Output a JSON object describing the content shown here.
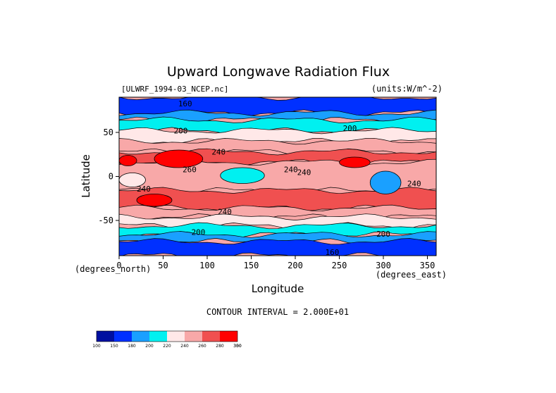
{
  "chart_data": {
    "type": "heatmap",
    "title": "Upward Longwave Radiation Flux",
    "file_label": "[ULWRF_1994-03_NCEP.nc]",
    "units_label": "(units:W/m^-2)",
    "xlabel": "Longitude",
    "ylabel": "Latitude",
    "x_unit_label": "(degrees_east)",
    "y_unit_label": "(degrees_north)",
    "xlim": [
      0,
      360
    ],
    "ylim": [
      -90,
      90
    ],
    "x_ticks": [
      0,
      50,
      100,
      150,
      200,
      250,
      300,
      350
    ],
    "y_ticks": [
      50,
      0,
      -50
    ],
    "contour_interval_text": "CONTOUR INTERVAL = 2.000E+01",
    "colorbar": {
      "levels": [
        100,
        150,
        180,
        200,
        220,
        240,
        260,
        280,
        300,
        350
      ],
      "colors": [
        "#0010a0",
        "#0030ff",
        "#1aa0ff",
        "#00f0f0",
        "#ffe8e8",
        "#f8a8a8",
        "#f05050",
        "#ff0000"
      ]
    },
    "contour_labels": [
      {
        "text": "160",
        "lon": 75,
        "lat": 83
      },
      {
        "text": "200",
        "lon": 70,
        "lat": 52
      },
      {
        "text": "200",
        "lon": 262,
        "lat": 55
      },
      {
        "text": "240",
        "lon": 113,
        "lat": 28
      },
      {
        "text": "260",
        "lon": 80,
        "lat": 8
      },
      {
        "text": "240",
        "lon": 195,
        "lat": 8
      },
      {
        "text": "240",
        "lon": 210,
        "lat": 5
      },
      {
        "text": "240",
        "lon": 28,
        "lat": -14
      },
      {
        "text": "240",
        "lon": 335,
        "lat": -8
      },
      {
        "text": "240",
        "lon": 120,
        "lat": -40
      },
      {
        "text": "200",
        "lon": 90,
        "lat": -63
      },
      {
        "text": "200",
        "lon": 300,
        "lat": -65
      },
      {
        "text": "160",
        "lon": 242,
        "lat": -86
      }
    ],
    "latitude_bands": [
      {
        "lat_from": 90,
        "lat_to": 72,
        "level": 150
      },
      {
        "lat_from": 72,
        "lat_to": 64,
        "level": 180
      },
      {
        "lat_from": 64,
        "lat_to": 52,
        "level": 200
      },
      {
        "lat_from": 52,
        "lat_to": 40,
        "level": 220
      },
      {
        "lat_from": 40,
        "lat_to": 28,
        "level": 240
      },
      {
        "lat_from": 28,
        "lat_to": 16,
        "level": 260
      },
      {
        "lat_from": 16,
        "lat_to": -16,
        "level": 240
      },
      {
        "lat_from": -16,
        "lat_to": -36,
        "level": 260
      },
      {
        "lat_from": -36,
        "lat_to": -46,
        "level": 240
      },
      {
        "lat_from": -46,
        "lat_to": -56,
        "level": 220
      },
      {
        "lat_from": -56,
        "lat_to": -66,
        "level": 200
      },
      {
        "lat_from": -66,
        "lat_to": -74,
        "level": 180
      },
      {
        "lat_from": -74,
        "lat_to": -90,
        "level": 150
      }
    ],
    "regional_features": [
      {
        "lon_from": 40,
        "lon_to": 95,
        "lat_from": 30,
        "lat_to": 10,
        "level": 300
      },
      {
        "lon_from": 0,
        "lon_to": 20,
        "lat_from": 24,
        "lat_to": 12,
        "level": 280
      },
      {
        "lon_from": 0,
        "lon_to": 30,
        "lat_from": 4,
        "lat_to": -12,
        "level": 220
      },
      {
        "lon_from": 115,
        "lon_to": 165,
        "lat_from": 10,
        "lat_to": -8,
        "level": 200
      },
      {
        "lon_from": 285,
        "lon_to": 320,
        "lat_from": 6,
        "lat_to": -20,
        "level": 180
      },
      {
        "lon_from": 250,
        "lon_to": 285,
        "lat_from": 22,
        "lat_to": 10,
        "level": 280
      },
      {
        "lon_from": 20,
        "lon_to": 60,
        "lat_from": -20,
        "lat_to": -34,
        "level": 280
      }
    ]
  }
}
